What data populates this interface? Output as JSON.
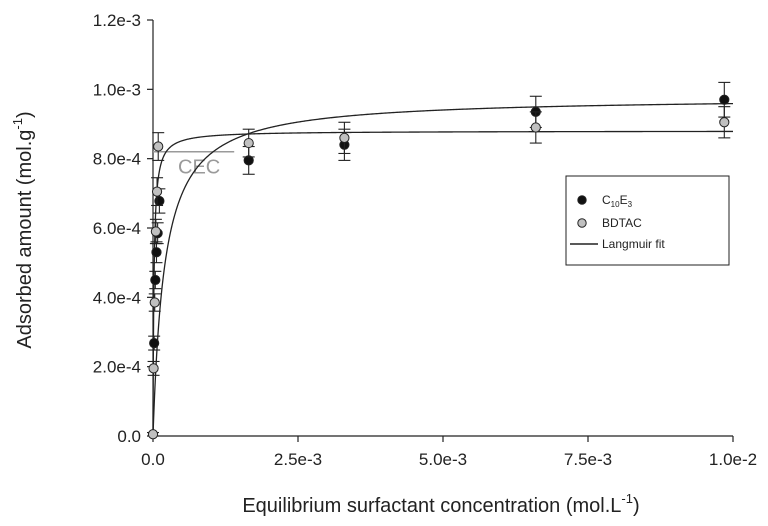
{
  "chart_data": {
    "type": "scatter",
    "xlabel": "Equilibrium surfactant concentration (mol.L",
    "xlabel_sup": "-1",
    "xlabel_suffix": ")",
    "ylabel": "Adsorbed amount (mol.g",
    "ylabel_sup": "-1",
    "ylabel_suffix": ")",
    "xlim": [
      0,
      0.01
    ],
    "ylim": [
      0,
      0.0012
    ],
    "x_ticks": [
      0,
      0.0025,
      0.005,
      0.0075,
      0.01
    ],
    "x_tick_labels": [
      "0.0",
      "2.5e-3",
      "5.0e-3",
      "7.5e-3",
      "1.0e-2"
    ],
    "y_ticks": [
      0,
      0.0002,
      0.0004,
      0.0006,
      0.0008,
      0.001,
      0.0012
    ],
    "y_tick_labels": [
      "0.0",
      "2.0e-4",
      "4.0e-4",
      "6.0e-4",
      "8.0e-4",
      "1.0e-3",
      "1.2e-3"
    ],
    "grid": false,
    "legend_position": "right",
    "series": [
      {
        "name_main": "C",
        "name_sub1": "10",
        "name_mid": "E",
        "name_sub2": "3",
        "color": "#111111",
        "points": [
          {
            "x": 2e-05,
            "y": 0.000268,
            "err": 2e-05
          },
          {
            "x": 4e-05,
            "y": 0.00045,
            "err": 2.5e-05
          },
          {
            "x": 6e-05,
            "y": 0.00053,
            "err": 3e-05
          },
          {
            "x": 8e-05,
            "y": 0.000585,
            "err": 3e-05
          },
          {
            "x": 0.00011,
            "y": 0.000678,
            "err": 3.5e-05
          },
          {
            "x": 0.00165,
            "y": 0.000795,
            "err": 4e-05
          },
          {
            "x": 0.0033,
            "y": 0.00084,
            "err": 4.5e-05
          },
          {
            "x": 0.0066,
            "y": 0.000935,
            "err": 4.5e-05
          },
          {
            "x": 0.00985,
            "y": 0.00097,
            "err": 5e-05
          }
        ]
      },
      {
        "name_main": "BDTAC",
        "color": "#c0c0c0",
        "points": [
          {
            "x": 0.0,
            "y": 5e-06,
            "err": 5e-06
          },
          {
            "x": 1e-05,
            "y": 0.000195,
            "err": 2e-05
          },
          {
            "x": 3e-05,
            "y": 0.000385,
            "err": 2.5e-05
          },
          {
            "x": 5e-05,
            "y": 0.00059,
            "err": 3.5e-05
          },
          {
            "x": 7e-05,
            "y": 0.000705,
            "err": 4e-05
          },
          {
            "x": 9e-05,
            "y": 0.000835,
            "err": 4e-05
          },
          {
            "x": 0.00165,
            "y": 0.000845,
            "err": 4e-05
          },
          {
            "x": 0.0033,
            "y": 0.00086,
            "err": 4.5e-05
          },
          {
            "x": 0.0066,
            "y": 0.00089,
            "err": 4.5e-05
          },
          {
            "x": 0.00985,
            "y": 0.000905,
            "err": 4.5e-05
          }
        ]
      }
    ],
    "fit": {
      "name": "Langmuir fit",
      "curves": [
        {
          "qmax": 0.000978,
          "K": 5000
        },
        {
          "qmax": 0.00088,
          "K": 60000
        }
      ]
    },
    "annotation": {
      "text": "CEC",
      "y": 0.00082,
      "x_start": 0.0,
      "x_end": 0.0014,
      "color": "#9a9a9a"
    }
  }
}
